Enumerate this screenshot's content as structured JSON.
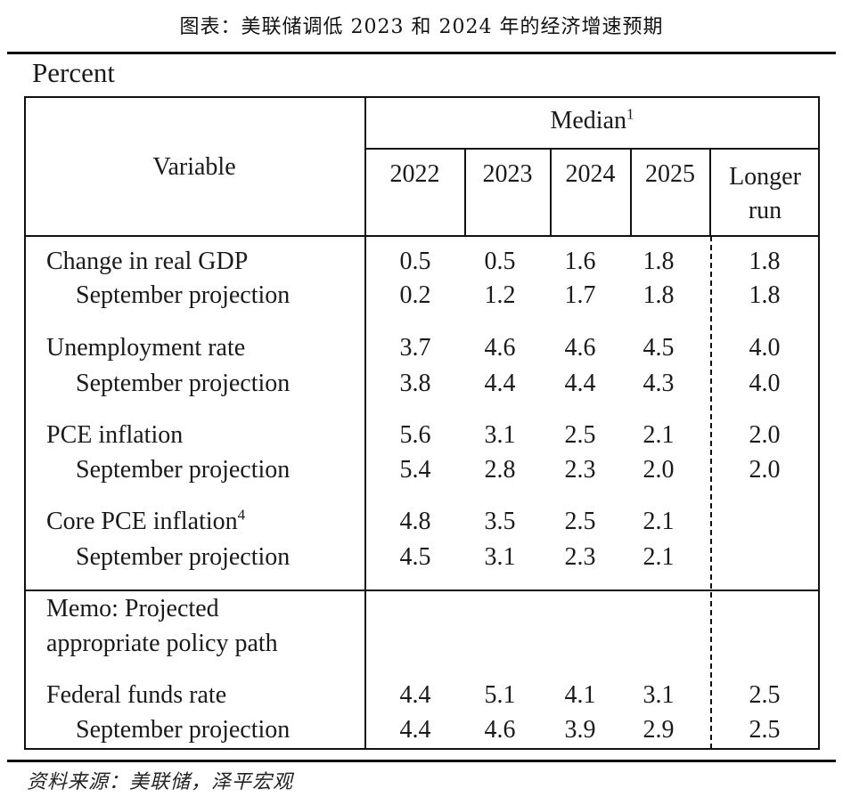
{
  "title": "图表：美联储调低 2023 和 2024 年的经济增速预期",
  "unit": "Percent",
  "header": {
    "variable": "Variable",
    "median": "Median",
    "median_sup": "1",
    "years": [
      "2022",
      "2023",
      "2024",
      "2025"
    ],
    "longer_run_1": "Longer",
    "longer_run_2": "run"
  },
  "rows": {
    "gdp": {
      "label": "Change in real GDP",
      "values": [
        "0.5",
        "0.5",
        "1.6",
        "1.8"
      ],
      "lr": "1.8"
    },
    "gdp_sep": {
      "label": "September projection",
      "values": [
        "0.2",
        "1.2",
        "1.7",
        "1.8"
      ],
      "lr": "1.8"
    },
    "unemp": {
      "label": "Unemployment rate",
      "values": [
        "3.7",
        "4.6",
        "4.6",
        "4.5"
      ],
      "lr": "4.0"
    },
    "unemp_sep": {
      "label": "September projection",
      "values": [
        "3.8",
        "4.4",
        "4.4",
        "4.3"
      ],
      "lr": "4.0"
    },
    "pce": {
      "label": "PCE inflation",
      "values": [
        "5.6",
        "3.1",
        "2.5",
        "2.1"
      ],
      "lr": "2.0"
    },
    "pce_sep": {
      "label": "September projection",
      "values": [
        "5.4",
        "2.8",
        "2.3",
        "2.0"
      ],
      "lr": "2.0"
    },
    "core": {
      "label": "Core PCE inflation",
      "sup": "4",
      "values": [
        "4.8",
        "3.5",
        "2.5",
        "2.1"
      ],
      "lr": ""
    },
    "core_sep": {
      "label": "September projection",
      "values": [
        "4.5",
        "3.1",
        "2.3",
        "2.1"
      ],
      "lr": ""
    },
    "memo_1": "Memo: Projected",
    "memo_2": "appropriate policy path",
    "ffr": {
      "label": "Federal funds rate",
      "values": [
        "4.4",
        "5.1",
        "4.1",
        "3.1"
      ],
      "lr": "2.5"
    },
    "ffr_sep": {
      "label": "September projection",
      "values": [
        "4.4",
        "4.6",
        "3.9",
        "2.9"
      ],
      "lr": "2.5"
    }
  },
  "source": "资料来源：美联储，泽平宏观"
}
